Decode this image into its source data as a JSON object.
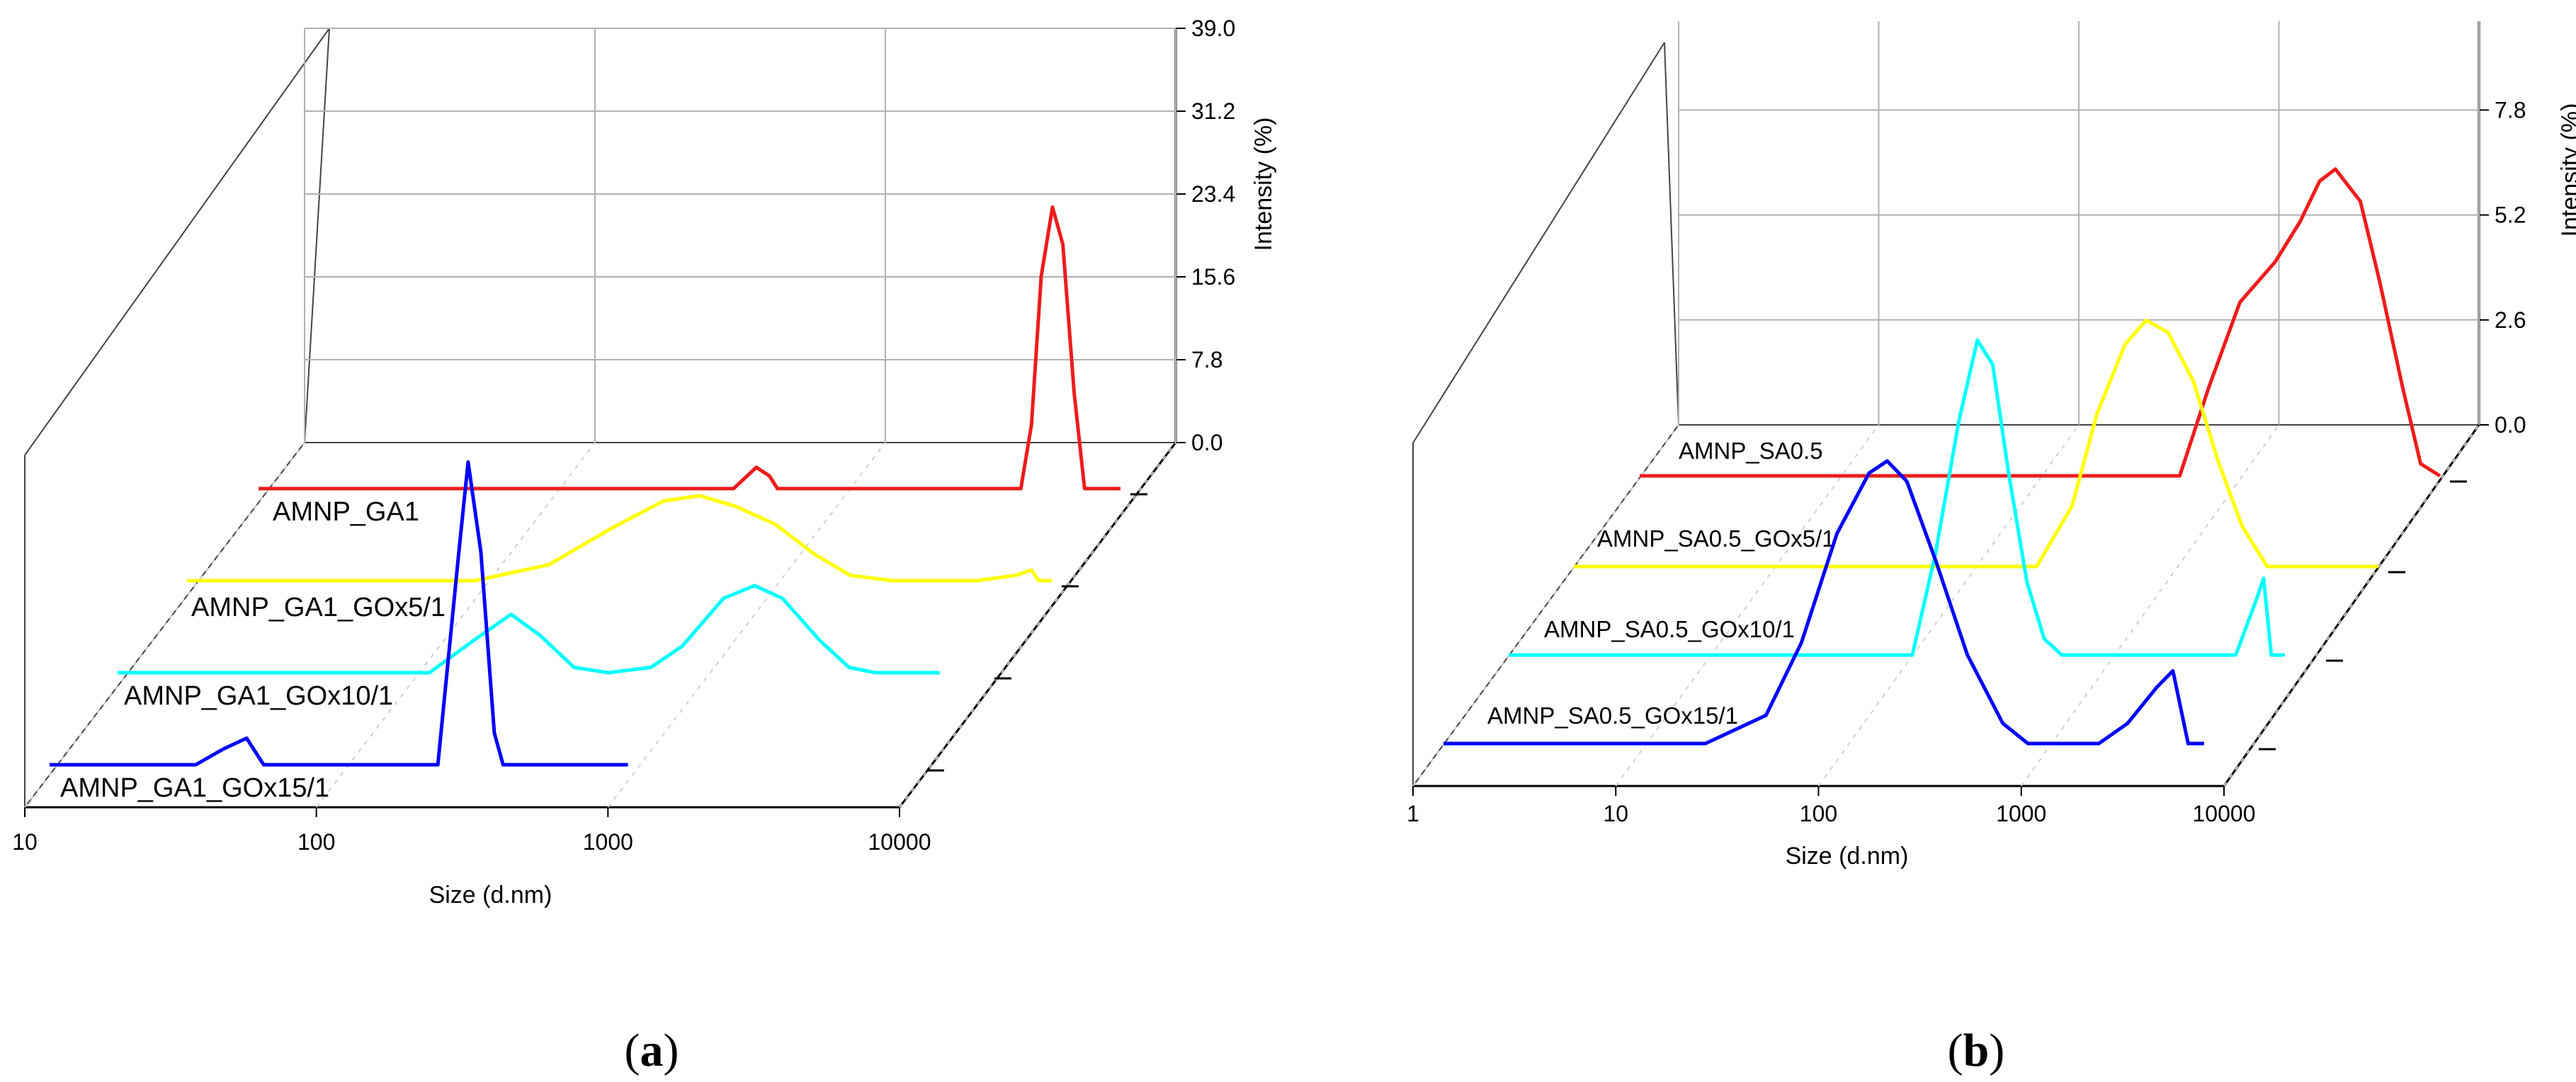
{
  "chart_data": [
    {
      "type": "line",
      "style": "3d-waterfall",
      "panel": "a",
      "caption": "a",
      "xlabel": "Size (d.nm)",
      "ylabel": "Intensity (%)",
      "xscale": "log",
      "xlim": [
        10,
        10000
      ],
      "xticks": [
        "10",
        "100",
        "1000",
        "10000"
      ],
      "ylim": [
        0,
        39
      ],
      "yticks": [
        "0.0",
        "7.8",
        "15.6",
        "23.4",
        "31.2",
        "39.0"
      ],
      "series": [
        {
          "name": "AMNP_GA1",
          "color": "#ee1c1c",
          "points": [
            [
              10,
              0
            ],
            [
              450,
              0
            ],
            [
              540,
              2.0
            ],
            [
              600,
              1.2
            ],
            [
              640,
              0
            ],
            [
              4500,
              0
            ],
            [
              4900,
              6
            ],
            [
              5300,
              20
            ],
            [
              5800,
              26.5
            ],
            [
              6300,
              23
            ],
            [
              6900,
              9
            ],
            [
              7500,
              0
            ],
            [
              10000,
              0
            ]
          ]
        },
        {
          "name": "AMNP_GA1_GOx5/1",
          "color": "#ffff00",
          "points": [
            [
              10,
              0
            ],
            [
              100,
              0
            ],
            [
              180,
              1.5
            ],
            [
              300,
              5
            ],
            [
              450,
              7.5
            ],
            [
              600,
              8
            ],
            [
              800,
              7
            ],
            [
              1100,
              5.3
            ],
            [
              1500,
              2.5
            ],
            [
              2000,
              0.5
            ],
            [
              2800,
              0
            ],
            [
              5500,
              0
            ],
            [
              7500,
              0.5
            ],
            [
              8500,
              1
            ],
            [
              9000,
              0
            ],
            [
              10000,
              0
            ]
          ]
        },
        {
          "name": "AMNP_GA1_GOx10/1",
          "color": "#00ffff",
          "points": [
            [
              10,
              0
            ],
            [
              120,
              0
            ],
            [
              170,
              3
            ],
            [
              230,
              5.5
            ],
            [
              290,
              3.5
            ],
            [
              380,
              0.5
            ],
            [
              500,
              0
            ],
            [
              700,
              0.5
            ],
            [
              900,
              2.5
            ],
            [
              1250,
              7
            ],
            [
              1600,
              8.2
            ],
            [
              2000,
              7
            ],
            [
              2700,
              3
            ],
            [
              3400,
              0.5
            ],
            [
              4200,
              0
            ],
            [
              7000,
              0
            ]
          ]
        },
        {
          "name": "AMNP_GA1_GOx15/1",
          "color": "#0000ff",
          "points": [
            [
              10,
              0
            ],
            [
              32,
              0
            ],
            [
              40,
              1.5
            ],
            [
              48,
              2.5
            ],
            [
              55,
              0
            ],
            [
              220,
              0
            ],
            [
              260,
              20
            ],
            [
              280,
              28.5
            ],
            [
              310,
              20
            ],
            [
              345,
              3
            ],
            [
              370,
              0
            ],
            [
              1000,
              0
            ]
          ]
        }
      ]
    },
    {
      "type": "line",
      "style": "3d-waterfall",
      "panel": "b",
      "caption": "b",
      "xlabel": "Size (d.nm)",
      "ylabel": "Intensity (%)",
      "xscale": "log",
      "xlim": [
        1,
        10000
      ],
      "xticks": [
        "1",
        "10",
        "100",
        "1000",
        "10000"
      ],
      "ylim": [
        0,
        10
      ],
      "yticks": [
        "0.0",
        "2.6",
        "5.2",
        "7.8"
      ],
      "series": [
        {
          "name": "AMNP_SA0.5",
          "color": "#ee1c1c",
          "points": [
            [
              1,
              0
            ],
            [
              500,
              0
            ],
            [
              700,
              2.2
            ],
            [
              1000,
              4.3
            ],
            [
              1500,
              5.3
            ],
            [
              2000,
              6.3
            ],
            [
              2500,
              7.3
            ],
            [
              3000,
              7.6
            ],
            [
              4000,
              6.8
            ],
            [
              5000,
              4.8
            ],
            [
              6500,
              2.2
            ],
            [
              8000,
              0.3
            ],
            [
              10000,
              0
            ]
          ]
        },
        {
          "name": "AMNP_SA0.5_GOx5/1",
          "color": "#ffff00",
          "points": [
            [
              1,
              0
            ],
            [
              200,
              0
            ],
            [
              300,
              1.5
            ],
            [
              400,
              3.8
            ],
            [
              550,
              5.5
            ],
            [
              700,
              6.1
            ],
            [
              900,
              5.8
            ],
            [
              1200,
              4.6
            ],
            [
              1600,
              2.6
            ],
            [
              2100,
              1
            ],
            [
              2800,
              0
            ],
            [
              10000,
              0
            ]
          ]
        },
        {
          "name": "AMNP_SA0.5_GOx10/1",
          "color": "#00ffff",
          "points": [
            [
              1,
              0
            ],
            [
              70,
              0
            ],
            [
              100,
              0
            ],
            [
              130,
              2.5
            ],
            [
              170,
              5.8
            ],
            [
              210,
              7.8
            ],
            [
              250,
              7.2
            ],
            [
              300,
              4.5
            ],
            [
              370,
              1.8
            ],
            [
              450,
              0.4
            ],
            [
              550,
              0
            ],
            [
              4000,
              0
            ],
            [
              5000,
              1.3
            ],
            [
              5500,
              1.9
            ],
            [
              6000,
              0
            ],
            [
              7000,
              0
            ]
          ]
        },
        {
          "name": "AMNP_SA0.5_GOx15/1",
          "color": "#0000ff",
          "points": [
            [
              1,
              0
            ],
            [
              20,
              0
            ],
            [
              40,
              0.7
            ],
            [
              60,
              2.5
            ],
            [
              90,
              5.2
            ],
            [
              130,
              6.7
            ],
            [
              160,
              7.0
            ],
            [
              200,
              6.5
            ],
            [
              280,
              4.5
            ],
            [
              400,
              2.2
            ],
            [
              600,
              0.5
            ],
            [
              800,
              0
            ],
            [
              1800,
              0
            ],
            [
              2500,
              0.5
            ],
            [
              3500,
              1.4
            ],
            [
              4200,
              1.8
            ],
            [
              5000,
              0
            ],
            [
              6000,
              0
            ]
          ]
        }
      ]
    }
  ]
}
